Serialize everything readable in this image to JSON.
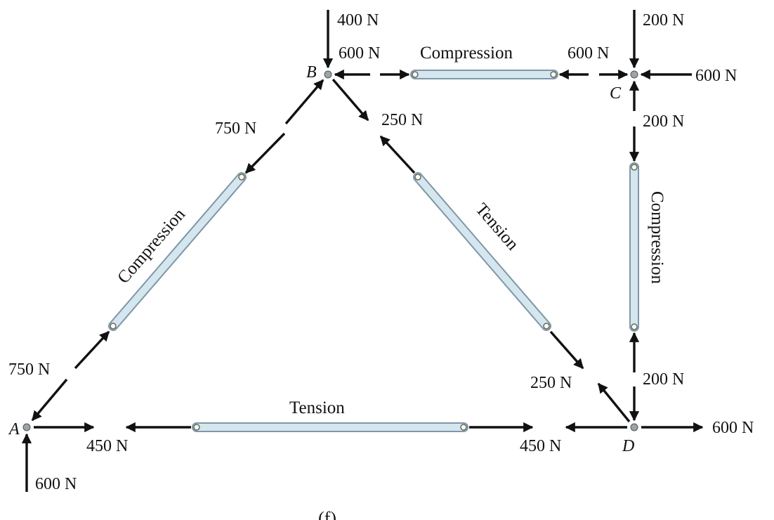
{
  "joints": [
    {
      "id": "A",
      "label": "A"
    },
    {
      "id": "B",
      "label": "B"
    },
    {
      "id": "C",
      "label": "C"
    },
    {
      "id": "D",
      "label": "D"
    }
  ],
  "members": [
    {
      "id": "AB",
      "label": "Compression",
      "force": "750 N"
    },
    {
      "id": "BD",
      "label": "Tension",
      "force": "250 N"
    },
    {
      "id": "BC",
      "label": "Compression",
      "force": "600 N"
    },
    {
      "id": "CD",
      "label": "Compression",
      "force": "200 N"
    },
    {
      "id": "AD",
      "label": "Tension",
      "force": "450 N"
    }
  ],
  "external_loads": {
    "B_vertical": "400 N",
    "C_vertical": "200 N",
    "C_horizontal": "600 N",
    "A_reaction": "600 N",
    "D_horizontal": "600 N"
  },
  "caption": "(f)",
  "colors": {
    "member_fill": "#d6e6ef",
    "member_stroke": "#7d98a8",
    "arrow": "#111111",
    "joint": "#9aa4aa"
  }
}
